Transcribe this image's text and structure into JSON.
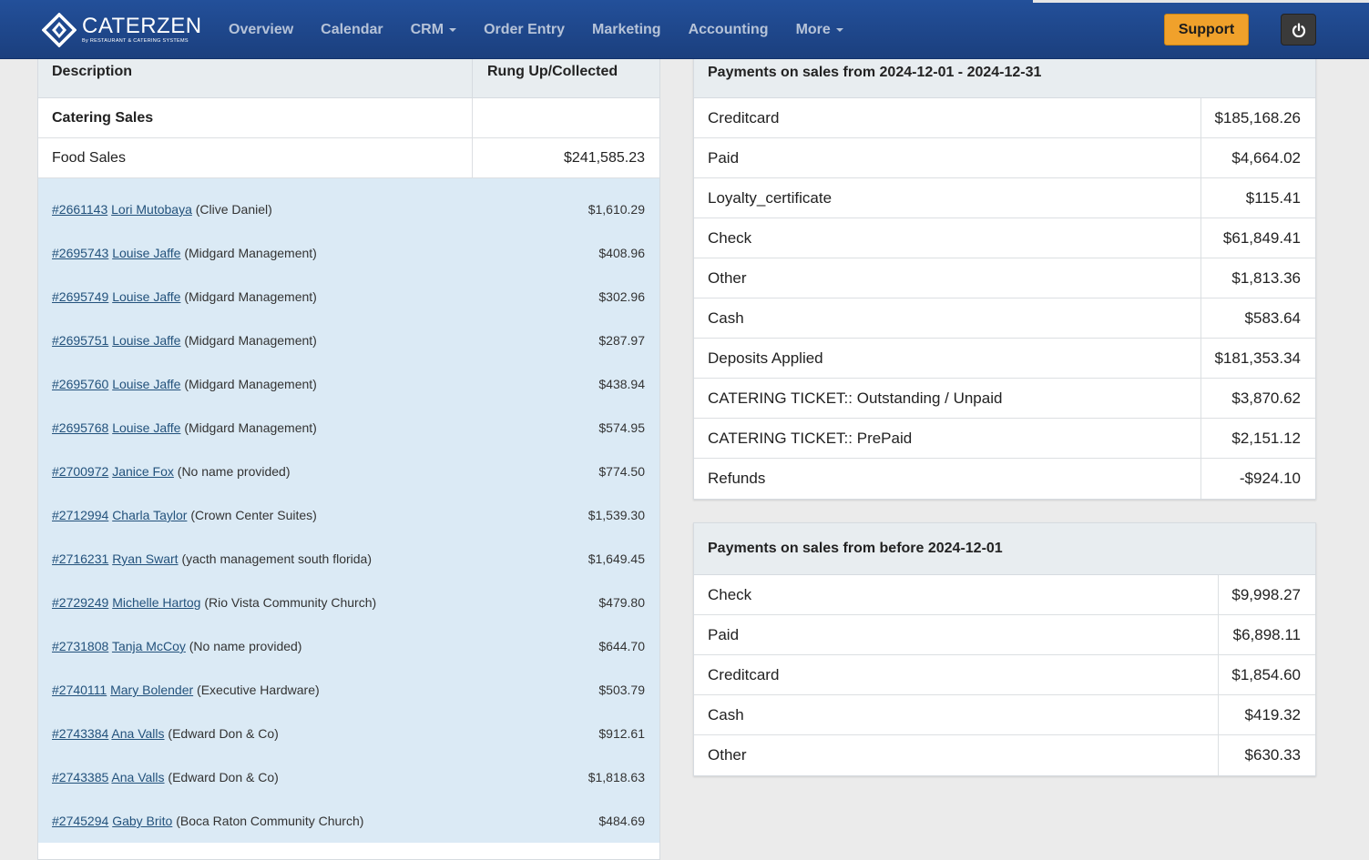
{
  "brand": {
    "name": "CATERZEN",
    "tagline": "By RESTAURANT & CATERING SYSTEMS"
  },
  "nav": {
    "items": [
      {
        "label": "Overview",
        "dropdown": false
      },
      {
        "label": "Calendar",
        "dropdown": false
      },
      {
        "label": "CRM",
        "dropdown": true
      },
      {
        "label": "Order Entry",
        "dropdown": false
      },
      {
        "label": "Marketing",
        "dropdown": false
      },
      {
        "label": "Accounting",
        "dropdown": false
      },
      {
        "label": "More",
        "dropdown": true
      }
    ],
    "support_label": "Support",
    "power_icon": "power-icon"
  },
  "colors": {
    "navbar": "#1f4789",
    "support": "#f0a12b",
    "link": "#23527c",
    "order_bg": "#dbeaf5"
  },
  "sales_table": {
    "col_description": "Description",
    "col_amount": "Rung Up/Collected",
    "section_label": "Catering Sales",
    "section_value": "",
    "food_sales_label": "Food Sales",
    "food_sales_value": "$241,585.23",
    "orders": [
      {
        "id": "#2661143",
        "name": "Lori Mutobaya",
        "company": "(Clive Daniel)",
        "amount": "$1,610.29"
      },
      {
        "id": "#2695743",
        "name": "Louise Jaffe",
        "company": "(Midgard Management)",
        "amount": "$408.96"
      },
      {
        "id": "#2695749",
        "name": "Louise Jaffe",
        "company": "(Midgard Management)",
        "amount": "$302.96"
      },
      {
        "id": "#2695751",
        "name": "Louise Jaffe",
        "company": "(Midgard Management)",
        "amount": "$287.97"
      },
      {
        "id": "#2695760",
        "name": "Louise Jaffe",
        "company": "(Midgard Management)",
        "amount": "$438.94"
      },
      {
        "id": "#2695768",
        "name": "Louise Jaffe",
        "company": "(Midgard Management)",
        "amount": "$574.95"
      },
      {
        "id": "#2700972",
        "name": "Janice Fox",
        "company": "(No name provided)",
        "amount": "$774.50"
      },
      {
        "id": "#2712994",
        "name": "Charla Taylor",
        "company": "(Crown Center Suites)",
        "amount": "$1,539.30"
      },
      {
        "id": "#2716231",
        "name": "Ryan Swart",
        "company": "(yacth management south florida)",
        "amount": "$1,649.45"
      },
      {
        "id": "#2729249",
        "name": "Michelle Hartog",
        "company": "(Rio Vista Community Church)",
        "amount": "$479.80"
      },
      {
        "id": "#2731808",
        "name": "Tanja McCoy",
        "company": "(No name provided)",
        "amount": "$644.70"
      },
      {
        "id": "#2740111",
        "name": "Mary Bolender",
        "company": "(Executive Hardware)",
        "amount": "$503.79"
      },
      {
        "id": "#2743384",
        "name": "Ana Valls",
        "company": "(Edward Don & Co)",
        "amount": "$912.61"
      },
      {
        "id": "#2743385",
        "name": "Ana Valls",
        "company": "(Edward Don & Co)",
        "amount": "$1,818.63"
      },
      {
        "id": "#2745294",
        "name": "Gaby Brito",
        "company": "(Boca Raton Community Church)",
        "amount": "$484.69"
      }
    ]
  },
  "payments_current": {
    "title": "Payments on sales from 2024-12-01 - 2024-12-31",
    "rows": [
      {
        "label": "Creditcard",
        "value": "$185,168.26"
      },
      {
        "label": "Paid",
        "value": "$4,664.02"
      },
      {
        "label": "Loyalty_certificate",
        "value": "$115.41"
      },
      {
        "label": "Check",
        "value": "$61,849.41"
      },
      {
        "label": "Other",
        "value": "$1,813.36"
      },
      {
        "label": "Cash",
        "value": "$583.64"
      },
      {
        "label": "Deposits Applied",
        "value": "$181,353.34"
      },
      {
        "label": "CATERING TICKET:: Outstanding / Unpaid",
        "value": "$3,870.62"
      },
      {
        "label": "CATERING TICKET:: PrePaid",
        "value": "$2,151.12"
      },
      {
        "label": "Refunds",
        "value": "-$924.10"
      }
    ]
  },
  "payments_before": {
    "title": "Payments on sales from before 2024-12-01",
    "rows": [
      {
        "label": "Check",
        "value": "$9,998.27"
      },
      {
        "label": "Paid",
        "value": "$6,898.11"
      },
      {
        "label": "Creditcard",
        "value": "$1,854.60"
      },
      {
        "label": "Cash",
        "value": "$419.32"
      },
      {
        "label": "Other",
        "value": "$630.33"
      }
    ]
  }
}
